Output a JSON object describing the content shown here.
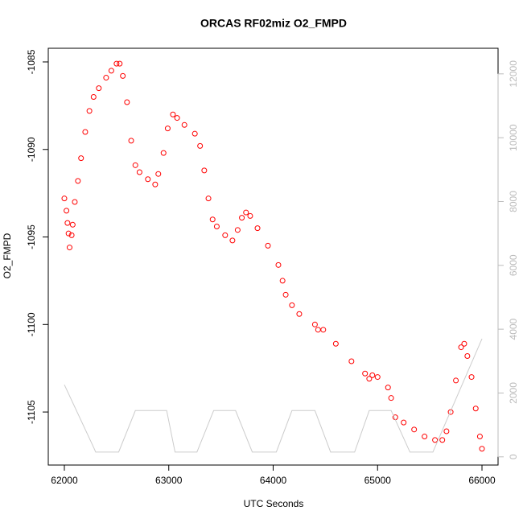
{
  "chart_data": {
    "type": "scatter",
    "title": "ORCAS RF02miz O2_FMPD",
    "x_label": "UTC Seconds",
    "y_label": "O2_FMPD",
    "xlim": [
      61846,
      66154
    ],
    "ylim": [
      -1108.03,
      -1084.22
    ],
    "y2lim": [
      -257,
      12802
    ],
    "xticks": [
      62000,
      63000,
      64000,
      65000,
      66000
    ],
    "yticks": [
      -1085,
      -1090,
      -1095,
      -1100,
      -1105
    ],
    "y2ticks": [
      0,
      2000,
      4000,
      6000,
      8000,
      10000,
      12000
    ],
    "series": [
      {
        "type": "scatter",
        "color": "#ff0000",
        "x": [
          62000,
          62020,
          62030,
          62040,
          62050,
          62070,
          62080,
          62100,
          62130,
          62160,
          62200,
          62240,
          62280,
          62330,
          62400,
          62450,
          62500,
          62530,
          62560,
          62600,
          62640,
          62680,
          62720,
          62800,
          62870,
          62900,
          62950,
          62990,
          63040,
          63080,
          63150,
          63250,
          63300,
          63340,
          63380,
          63420,
          63460,
          63540,
          63610,
          63660,
          63700,
          63740,
          63780,
          63850,
          63950,
          64050,
          64090,
          64120,
          64180,
          64250,
          64400,
          64430,
          64480,
          64600,
          64750,
          64880,
          64920,
          64950,
          65000,
          65100,
          65130,
          65170,
          65250,
          65350,
          65450,
          65550,
          65620,
          65660,
          65700,
          65750,
          65800,
          65830,
          65860,
          65900,
          65940,
          65980,
          66000
        ],
        "values": [
          -1092.8,
          -1093.5,
          -1094.2,
          -1094.8,
          -1095.6,
          -1094.9,
          -1094.3,
          -1093.0,
          -1091.8,
          -1090.5,
          -1089.0,
          -1087.8,
          -1087.0,
          -1086.5,
          -1085.9,
          -1085.5,
          -1085.1,
          -1085.1,
          -1085.8,
          -1087.3,
          -1089.5,
          -1090.9,
          -1091.3,
          -1091.7,
          -1092.0,
          -1091.4,
          -1090.2,
          -1088.8,
          -1088.0,
          -1088.2,
          -1088.6,
          -1089.1,
          -1089.8,
          -1091.2,
          -1092.8,
          -1094.0,
          -1094.4,
          -1094.9,
          -1095.2,
          -1094.6,
          -1093.9,
          -1093.6,
          -1093.8,
          -1094.5,
          -1095.5,
          -1096.6,
          -1097.5,
          -1098.3,
          -1098.9,
          -1099.4,
          -1100.0,
          -1100.3,
          -1100.3,
          -1101.1,
          -1102.1,
          -1102.8,
          -1103.1,
          -1102.9,
          -1103.0,
          -1103.6,
          -1104.2,
          -1105.3,
          -1105.6,
          -1106.0,
          -1106.4,
          -1106.6,
          -1106.6,
          -1106.1,
          -1105.0,
          -1103.2,
          -1101.3,
          -1101.1,
          -1101.8,
          -1103.0,
          -1104.8,
          -1106.4,
          -1107.1
        ]
      },
      {
        "type": "line",
        "color": "#cccccc",
        "axis": "y2",
        "x": [
          62000,
          62280,
          62300,
          62520,
          62680,
          62980,
          63060,
          63270,
          63430,
          63640,
          63800,
          64030,
          64180,
          64400,
          64550,
          64780,
          64920,
          65130,
          65310,
          65530,
          66000
        ],
        "values": [
          2260,
          300,
          150,
          150,
          1450,
          1450,
          150,
          150,
          1450,
          1450,
          150,
          150,
          1450,
          1450,
          150,
          150,
          1450,
          1450,
          150,
          150,
          3700
        ]
      }
    ]
  }
}
